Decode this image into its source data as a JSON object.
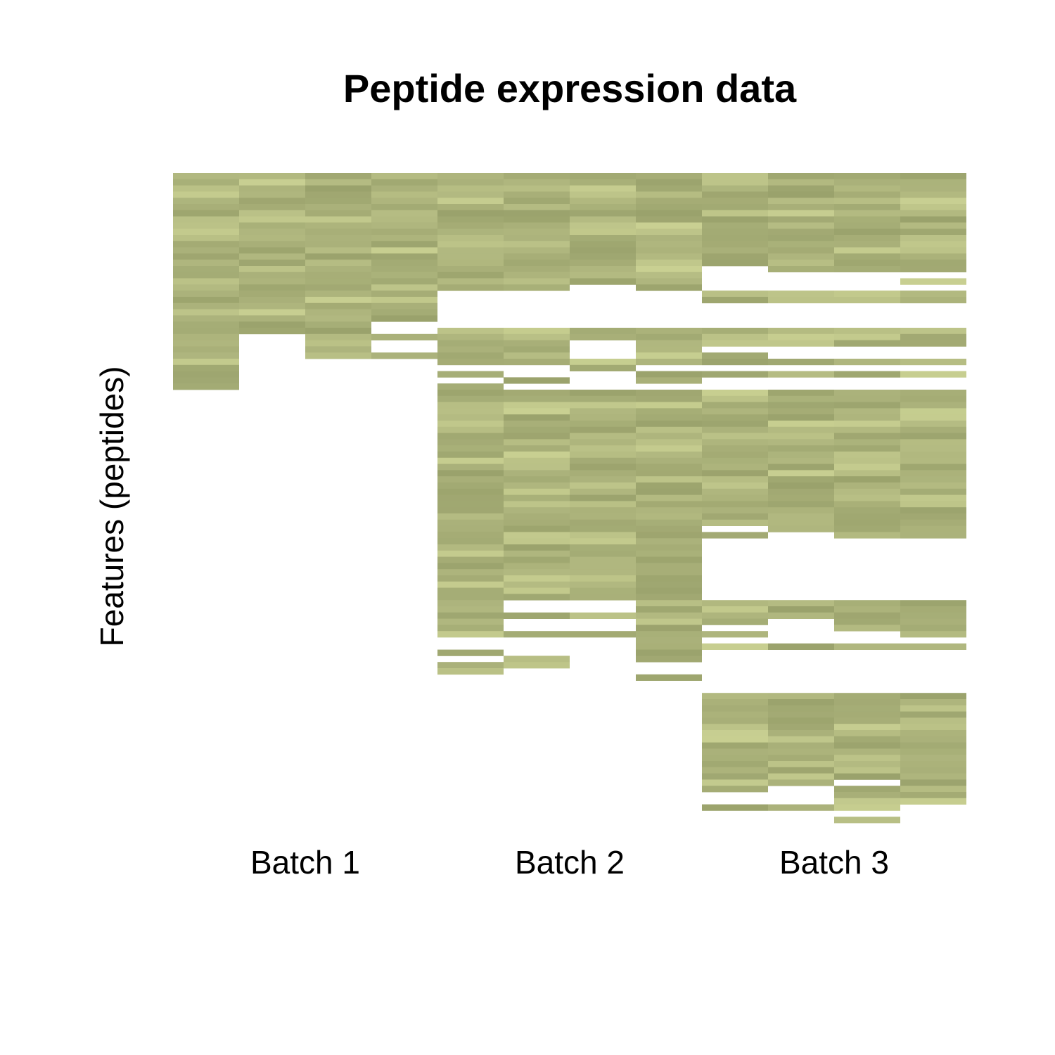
{
  "chart_data": {
    "type": "heatmap",
    "title": "Peptide expression data",
    "ylabel": "Features (peptides)",
    "xlabel": "",
    "batches": [
      "Batch 1",
      "Batch 2",
      "Batch 3"
    ],
    "samples_per_batch": 4,
    "n_features": 105,
    "missing_color": "#ffffff",
    "color_scale": [
      "#7d8554",
      "#9aa26c",
      "#afb67e",
      "#c4cb8e",
      "#d2da9a"
    ],
    "value_range": [
      0,
      1
    ],
    "cell_value_description": "relative expression level, 0 = darkest olive, 1 = lightest green; missing cells are null",
    "columns": [
      {
        "batch": "Batch 1",
        "observed_rows": [
          0,
          35
        ]
      },
      {
        "batch": "Batch 1",
        "observed_rows": [
          0,
          26
        ],
        "missing_rows": [
          26,
          27,
          28
        ]
      },
      {
        "batch": "Batch 1",
        "observed_rows": [
          0,
          30
        ]
      },
      {
        "batch": "Batch 1",
        "observed_rows": [
          0,
          30
        ],
        "missing_rows": [
          24,
          25,
          27,
          28
        ]
      },
      {
        "batch": "Batch 2",
        "observed_rows": [
          0,
          81
        ],
        "missing_rows": [
          19,
          20,
          21,
          22,
          23,
          24,
          31,
          33,
          75,
          76,
          78
        ]
      },
      {
        "batch": "Batch 2",
        "observed_rows": [
          0,
          80
        ],
        "missing_rows": [
          19,
          20,
          21,
          22,
          23,
          24,
          31,
          32,
          34,
          69,
          70,
          72,
          73,
          75,
          76,
          77
        ]
      },
      {
        "batch": "Batch 2",
        "observed_rows": [
          0,
          75
        ],
        "missing_rows": [
          18,
          19,
          20,
          21,
          22,
          23,
          24,
          27,
          28,
          29,
          32,
          33,
          34,
          69,
          70,
          72,
          73
        ]
      },
      {
        "batch": "Batch 2",
        "observed_rows": [
          0,
          82
        ],
        "missing_rows": [
          19,
          20,
          21,
          22,
          23,
          24,
          31,
          34,
          79,
          80
        ]
      },
      {
        "batch": "Batch 3",
        "observed_rows": [
          0,
          103
        ],
        "missing_rows": [
          15,
          16,
          17,
          18,
          21,
          22,
          23,
          24,
          28,
          31,
          33,
          34,
          57,
          59,
          60,
          61,
          62,
          63,
          64,
          65,
          66,
          67,
          68,
          73,
          75,
          77,
          78,
          79,
          80,
          81,
          82,
          83,
          100,
          101
        ]
      },
      {
        "batch": "Batch 3",
        "observed_rows": [
          0,
          104
        ],
        "missing_rows": [
          16,
          17,
          18,
          21,
          22,
          23,
          24,
          28,
          29,
          31,
          33,
          34,
          58,
          59,
          60,
          61,
          62,
          63,
          64,
          65,
          66,
          67,
          68,
          72,
          73,
          74,
          75,
          77,
          78,
          79,
          80,
          81,
          82,
          83,
          99,
          100,
          101,
          103
        ]
      },
      {
        "batch": "Batch 3",
        "observed_rows": [
          0,
          105
        ],
        "missing_rows": [
          16,
          17,
          18,
          21,
          22,
          23,
          24,
          28,
          29,
          31,
          33,
          34,
          59,
          60,
          61,
          62,
          63,
          64,
          65,
          66,
          67,
          68,
          74,
          75,
          77,
          78,
          79,
          80,
          81,
          82,
          83,
          98,
          103
        ]
      },
      {
        "batch": "Batch 3",
        "observed_rows": [
          0,
          102
        ],
        "missing_rows": [
          16,
          18,
          21,
          22,
          23,
          24,
          28,
          29,
          31,
          33,
          34,
          59,
          60,
          61,
          62,
          63,
          64,
          65,
          66,
          67,
          68,
          75,
          77,
          78,
          79,
          80,
          81,
          82,
          83
        ]
      }
    ]
  }
}
